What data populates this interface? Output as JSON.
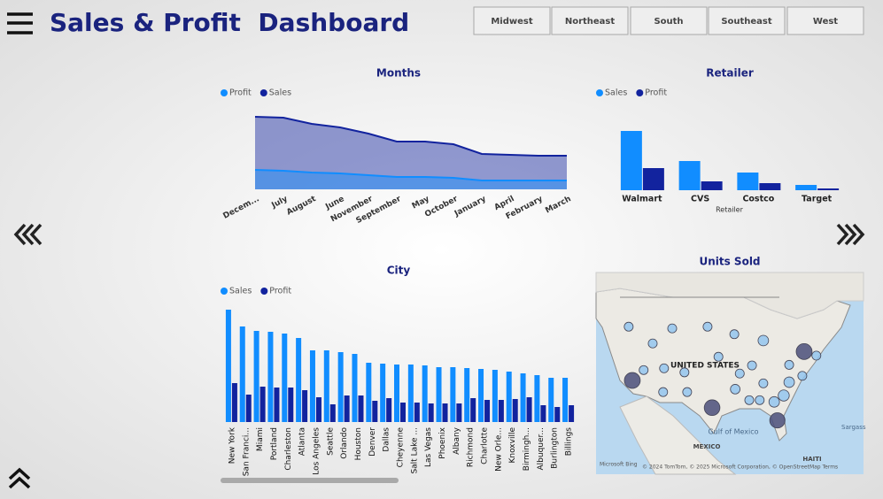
{
  "header": {
    "title": "Sales & Profit  Dashboard"
  },
  "buttons": [
    "Midwest",
    "Northeast",
    "South",
    "Southeast",
    "West"
  ],
  "chart_data": [
    {
      "type": "area",
      "title": "Months",
      "categories": [
        "Decem...",
        "July",
        "August",
        "June",
        "November",
        "September",
        "May",
        "October",
        "January",
        "April",
        "February",
        "March"
      ],
      "series": [
        {
          "name": "Profit",
          "color": "#118dff",
          "values": [
            22,
            21,
            19,
            18,
            16,
            14,
            14,
            13,
            10,
            10,
            10,
            10
          ]
        },
        {
          "name": "Sales",
          "color": "#12239e",
          "values": [
            82,
            81,
            74,
            70,
            63,
            54,
            54,
            51,
            40,
            39,
            38,
            38
          ]
        }
      ]
    },
    {
      "type": "bar",
      "title": "Retailer",
      "x_label": "Retailer",
      "categories": [
        "Walmart",
        "CVS",
        "Costco",
        "Target"
      ],
      "series": [
        {
          "name": "Sales",
          "color": "#118dff",
          "values": [
            67,
            33,
            20,
            6
          ]
        },
        {
          "name": "Profit",
          "color": "#12239e",
          "values": [
            25,
            10,
            8,
            2
          ]
        }
      ]
    },
    {
      "type": "bar",
      "title": "City",
      "rotate_labels": true,
      "categories": [
        "New York",
        "San Franci...",
        "Miami",
        "Portland",
        "Charleston",
        "Atlanta",
        "Los Angeles",
        "Seattle",
        "Orlando",
        "Houston",
        "Denver",
        "Dallas",
        "Cheyenne",
        "Salt Lake ...",
        "Las Vegas",
        "Phoenix",
        "Albany",
        "Richmond",
        "Charlotte",
        "New Orle...",
        "Knoxville",
        "Birmingh...",
        "Albuquer...",
        "Burlington",
        "Billings"
      ],
      "series": [
        {
          "name": "Sales",
          "color": "#118dff",
          "values": [
            127,
            108,
            103,
            102,
            100,
            95,
            81,
            81,
            79,
            77,
            67,
            66,
            65,
            65,
            64,
            62,
            62,
            61,
            60,
            59,
            57,
            55,
            53,
            50,
            50
          ]
        },
        {
          "name": "Profit",
          "color": "#12239e",
          "values": [
            44,
            31,
            40,
            39,
            39,
            36,
            28,
            20,
            30,
            30,
            24,
            27,
            22,
            22,
            21,
            21,
            21,
            27,
            25,
            25,
            26,
            28,
            19,
            17,
            19
          ]
        }
      ]
    },
    {
      "type": "bubble_map",
      "title": "Units Sold",
      "labels": [
        "UNITED STATES",
        "Gulf of Mexico",
        "MEXICO",
        "HAITI",
        "Sargass",
        "Microsoft Bing",
        "© 2024 TomTom, © 2025 Microsoft Corporation, © OpenStreetMap  Terms"
      ],
      "lon": [
        -117.8,
        -112.5,
        -108.2,
        -100.4,
        -94.5,
        -88.1,
        -79.1,
        -117.0,
        -114.5,
        -110.0,
        -105.5,
        -99.4,
        -85.0,
        -85.7,
        -83.6,
        -82.4,
        -79.5,
        -76.4,
        -94.3,
        -91.2,
        -88.9,
        -90.6,
        -88.1,
        -93.3,
        -104.9,
        -110.2,
        -98.0,
        -82.4
      ],
      "lat": [
        44.0,
        41.1,
        43.7,
        44.0,
        42.7,
        41.6,
        39.7,
        34.7,
        36.5,
        36.8,
        36.1,
        30.0,
        27.8,
        31.0,
        32.1,
        34.4,
        35.5,
        39.0,
        33.2,
        31.3,
        31.3,
        37.3,
        34.2,
        35.9,
        32.7,
        32.7,
        38.8,
        37.4
      ],
      "values": [
        13,
        13,
        13,
        13,
        13,
        18,
        41,
        41,
        13,
        13,
        13,
        40,
        38,
        18,
        20,
        18,
        13,
        13,
        15,
        13,
        13,
        13,
        13,
        13,
        13,
        13,
        13,
        13
      ],
      "color": "#8fc3ef"
    }
  ]
}
